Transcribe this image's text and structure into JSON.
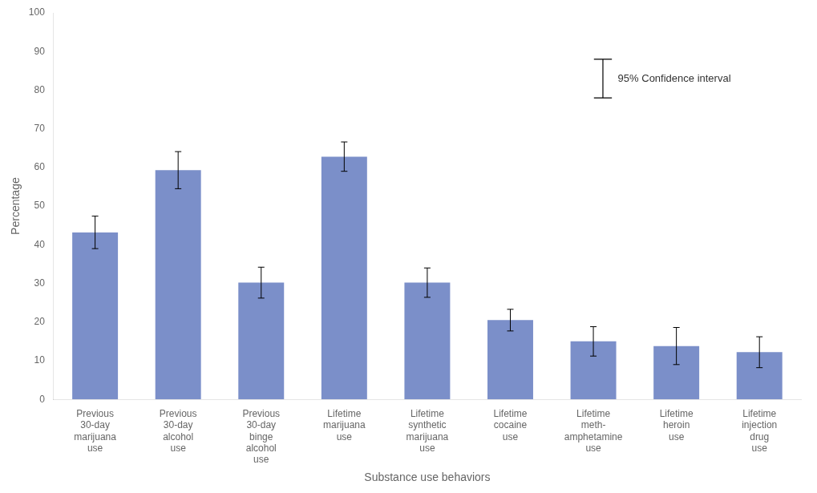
{
  "chart_data": {
    "type": "bar",
    "categories": [
      "Previous\n30-day\nmarijuana\nuse",
      "Previous\n30-day\nalcohol\nuse",
      "Previous\n30-day\nbinge\nalcohol\nuse",
      "Lifetime\nmarijuana\nuse",
      "Lifetime\nsynthetic\nmarijuana\nuse",
      "Lifetime\ncocaine\nuse",
      "Lifetime\nmeth-\namphetamine\nuse",
      "Lifetime\nheroin\nuse",
      "Lifetime\ninjection\ndrug\nuse"
    ],
    "values": [
      43.2,
      59.3,
      30.2,
      62.8,
      30.2,
      20.5,
      15.0,
      13.8,
      12.2
    ],
    "errors": [
      4.2,
      4.8,
      4.0,
      3.8,
      3.8,
      2.8,
      3.8,
      4.8,
      4.0
    ],
    "color": "#7b8fc9",
    "xlabel": "Substance use behaviors",
    "ylabel": "Percentage",
    "ylim": [
      0,
      100
    ],
    "yticks": [
      0,
      10,
      20,
      30,
      40,
      50,
      60,
      70,
      80,
      90,
      100
    ],
    "annotations": [
      "95% Confidence interval"
    ],
    "grid": false
  }
}
